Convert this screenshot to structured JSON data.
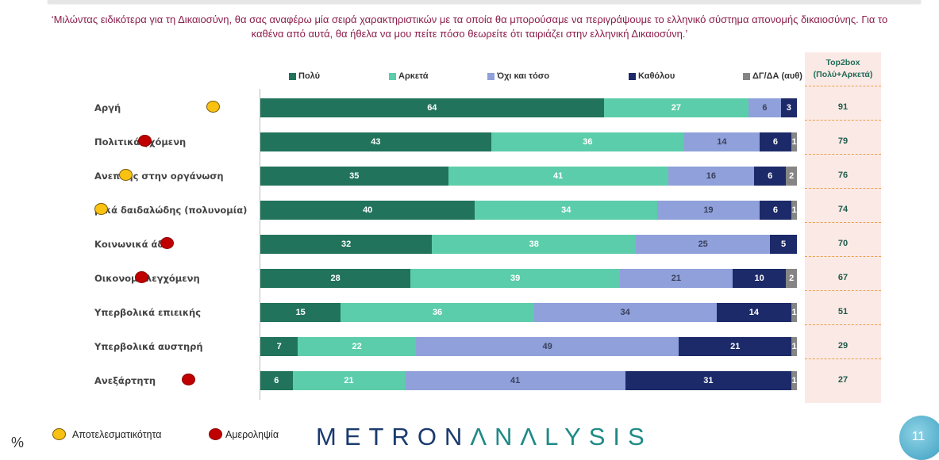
{
  "question": {
    "line1": "‘Μιλώντας ειδικότερα για τη Δικαιοσύνη, θα σας αναφέρω μία σειρά χαρακτηριστικών με τα οποία θα μπορούσαμε να περιγράψουμε το ελληνικό σύστημα απονομής δικαιοσύνης. Για το",
    "line2": "καθένα από αυτά, θα ήθελα να μου πείτε πόσο θεωρείτε ότι ταιριάζει στην ελληνική Δικαιοσύνη.’"
  },
  "chart_data": {
    "type": "bar",
    "orientation": "horizontal-stacked-100",
    "title": "",
    "unit": "%",
    "categories": [
      "Αργή",
      "Πολιτικά ελεγχόμενη",
      "Αναποτελεσματικής στην οργάνωση",
      "Νομικά δαιδαλώδης (πολυνομία)",
      "Κοινωνικά άδικη",
      "Οικονομικά ελεγχόμενη",
      "Υπερβολικά επιεικής",
      "Υπερβολικά αυστηρή",
      "Ανεξάρτητη"
    ],
    "category_labels_visible": [
      "Αργή",
      "Πολιτικά ",
      "Ανεπ",
      "",
      "Κοινωνικά άδ",
      "Οικονομ",
      "Υπερβολικά επιεικής",
      "Υπερβολικά αυστηρή",
      "Ανεξάρτητη"
    ],
    "category_labels_tail": [
      "",
      "γχόμενη",
      "κής στην οργάνωση",
      "μικά δαιδαλώδης (πολυνομία)",
      "",
      " ελεγχόμενη",
      "",
      "",
      ""
    ],
    "series": [
      {
        "name": "Πολύ",
        "color": "#21735b",
        "text_color": "#ffffff",
        "values": [
          64,
          43,
          35,
          40,
          32,
          28,
          15,
          7,
          6
        ]
      },
      {
        "name": "Αρκετά",
        "color": "#5ccdaa",
        "text_color": "#ffffff",
        "values": [
          27,
          36,
          41,
          34,
          38,
          39,
          36,
          22,
          21
        ]
      },
      {
        "name": "Όχι και τόσο",
        "color": "#8fa0da",
        "text_color": "#3a3f5c",
        "values": [
          6,
          14,
          16,
          19,
          25,
          21,
          34,
          49,
          41
        ]
      },
      {
        "name": "Καθόλου",
        "color": "#1c2a69",
        "text_color": "#ffffff",
        "values": [
          3,
          6,
          6,
          6,
          5,
          10,
          14,
          21,
          31
        ]
      },
      {
        "name": "ΔΓ/ΔΑ (αυθ)",
        "color": "#858585",
        "text_color": "#ffffff",
        "values": [
          0,
          1,
          2,
          1,
          0,
          2,
          1,
          1,
          1
        ]
      }
    ],
    "top2box": {
      "header_line1": "Top2box",
      "header_line2": "(Πολύ+Αρκετά)",
      "values": [
        91,
        79,
        76,
        74,
        70,
        67,
        51,
        29,
        27
      ]
    },
    "markers": [
      {
        "row": 0,
        "type": "effectiveness"
      },
      {
        "row": 1,
        "type": "impartiality"
      },
      {
        "row": 2,
        "type": "effectiveness"
      },
      {
        "row": 3,
        "type": "effectiveness"
      },
      {
        "row": 4,
        "type": "impartiality"
      },
      {
        "row": 5,
        "type": "impartiality"
      },
      {
        "row": 8,
        "type": "impartiality"
      }
    ],
    "xlim": [
      0,
      100
    ],
    "legend": "top"
  },
  "footer": {
    "percent_sign": "%",
    "key_effectiveness": "Αποτελεσματικότητα",
    "key_impartiality": "Αμεροληψία",
    "marker_colors": {
      "effectiveness": "#f9c213",
      "impartiality": "#c00000"
    },
    "logo_part1": "METRON",
    "logo_part2": "ΛNΛLYSIS",
    "page_number": "11"
  }
}
